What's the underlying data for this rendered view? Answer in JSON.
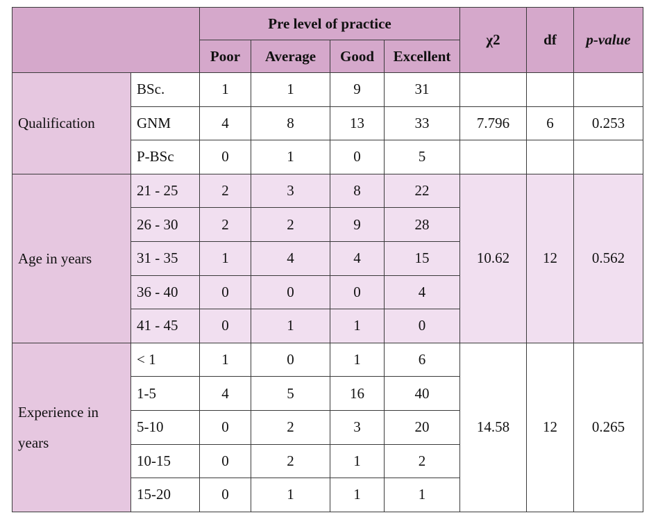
{
  "header": {
    "group_title": "Pre level of practice",
    "levels": [
      "Poor",
      "Average",
      "Good",
      "Excellent"
    ],
    "chi_label": "χ2",
    "df_label": "df",
    "p_label": "p-value"
  },
  "groups": [
    {
      "label": "Qualification",
      "chi": "7.796",
      "df": "6",
      "p": "0.253",
      "rows": [
        {
          "label": "BSc.",
          "values": [
            "1",
            "1",
            "9",
            "31"
          ]
        },
        {
          "label": "GNM",
          "values": [
            "4",
            "8",
            "13",
            "33"
          ]
        },
        {
          "label": "P-BSc",
          "values": [
            "0",
            "1",
            "0",
            "5"
          ]
        }
      ]
    },
    {
      "label": "Age in years",
      "chi": "10.62",
      "df": "12",
      "p": "0.562",
      "rows": [
        {
          "label": "21 - 25",
          "values": [
            "2",
            "3",
            "8",
            "22"
          ]
        },
        {
          "label": "26 - 30",
          "values": [
            "2",
            "2",
            "9",
            "28"
          ]
        },
        {
          "label": "31 - 35",
          "values": [
            "1",
            "4",
            "4",
            "15"
          ]
        },
        {
          "label": "36 - 40",
          "values": [
            "0",
            "0",
            "0",
            "4"
          ]
        },
        {
          "label": "41 - 45",
          "values": [
            "0",
            "1",
            "1",
            "0"
          ]
        }
      ]
    },
    {
      "label": "Experience in years",
      "chi": "14.58",
      "df": "12",
      "p": "0.265",
      "rows": [
        {
          "label": "< 1",
          "values": [
            "1",
            "0",
            "1",
            "6"
          ]
        },
        {
          "label": "1-5",
          "values": [
            "4",
            "5",
            "16",
            "40"
          ]
        },
        {
          "label": "5-10",
          "values": [
            "0",
            "2",
            "3",
            "20"
          ]
        },
        {
          "label": "10-15",
          "values": [
            "0",
            "2",
            "1",
            "2"
          ]
        },
        {
          "label": "15-20",
          "values": [
            "0",
            "1",
            "1",
            "1"
          ]
        }
      ]
    }
  ],
  "colors": {
    "header": "#d5a8cb",
    "group_label": "#e6c7e0",
    "age_rows": "#f1dff0",
    "border": "#3a3a3a"
  }
}
